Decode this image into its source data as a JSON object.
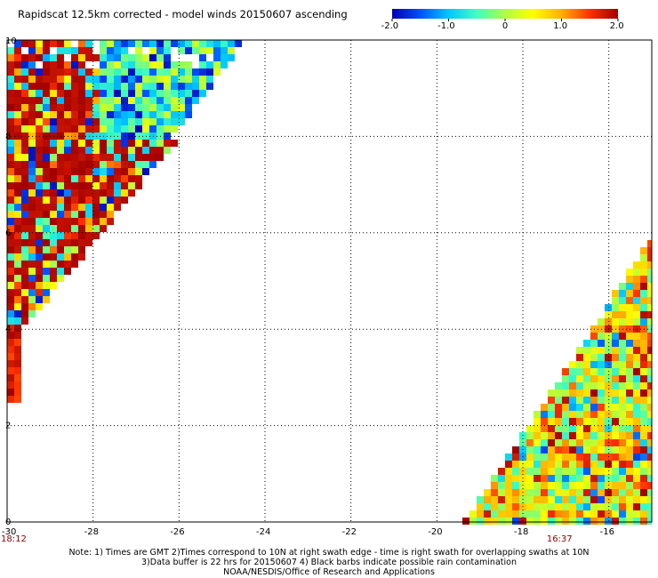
{
  "chart_data": {
    "type": "heatmap",
    "title": "Rapidscat 12.5km corrected - model winds 20150607 ascending",
    "colorbar": {
      "min": -2.0,
      "max": 2.0,
      "tick_values": [
        -2.0,
        -1.0,
        0,
        1.0,
        2.0
      ],
      "tick_labels": [
        "-2.0",
        "-1.0",
        "0",
        "1.0",
        "2.0"
      ],
      "colors": [
        "#0000b0",
        "#0050ff",
        "#00c8ff",
        "#40ffc0",
        "#b0ff40",
        "#ffff00",
        "#ffb000",
        "#ff3000",
        "#a00000"
      ]
    },
    "xlim": [
      -30,
      -15
    ],
    "ylim": [
      0,
      10
    ],
    "x_ticks": [
      -30,
      -28,
      -26,
      -24,
      -22,
      -20,
      -18,
      -16
    ],
    "x_tick_labels": [
      "-30",
      "-28",
      "-26",
      "-24",
      "-22",
      "-20",
      "-18",
      "-16"
    ],
    "y_ticks": [
      0,
      2,
      4,
      6,
      8,
      10
    ],
    "y_tick_labels": [
      "0",
      "2",
      "4",
      "6",
      "8",
      "10"
    ],
    "grid": true,
    "swaths": [
      {
        "time": "18:12",
        "time_lon": -30,
        "region": "left",
        "dominant": "high positive differences with scattered low values"
      },
      {
        "time": "16:37",
        "time_lon": -17.3,
        "region": "right",
        "dominant": "mixed near-zero to positive differences"
      }
    ]
  },
  "notes": [
    "Note: 1) Times are GMT 2)Times correspond to 10N at right swath edge - time is right swath for overlapping swaths at 10N",
    "3)Data buffer is 22 hrs for 20150607 4) Black barbs indicate possible rain contamination",
    "NOAA/NESDIS/Office of Research and Applications"
  ]
}
